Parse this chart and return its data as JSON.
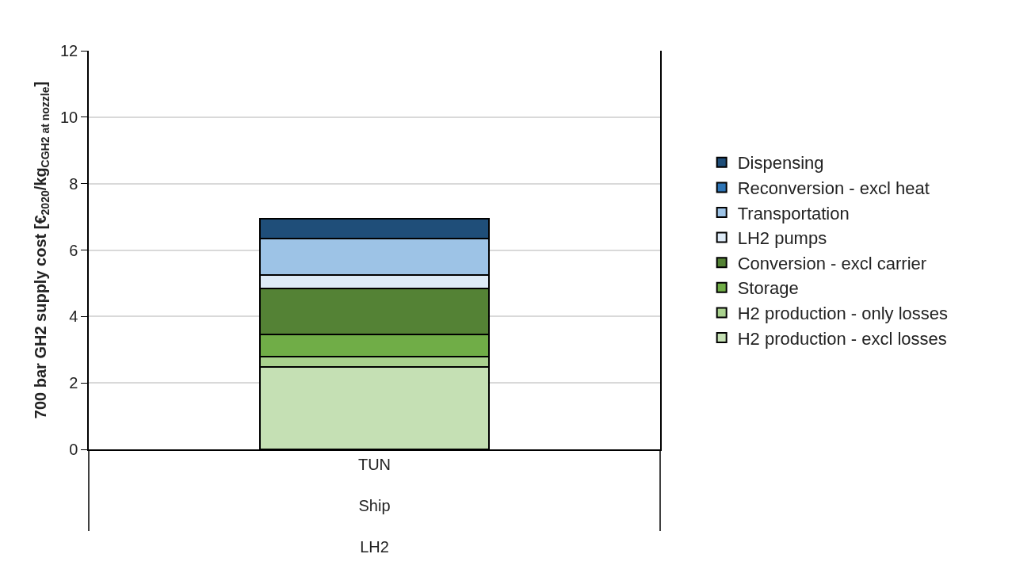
{
  "chart_data": {
    "type": "bar",
    "stacked": true,
    "ylabel": "700 bar GH2 supply cost [€$_{2020}$/kg$_{CGH2 at nozzle}$]",
    "categories": [
      "TUN\nShip\nLH2"
    ],
    "series": [
      {
        "name": "H2 production - excl losses",
        "color": "#c5e0b4",
        "values": [
          2.48
        ]
      },
      {
        "name": "H2 production - only losses",
        "color": "#a9d18e",
        "values": [
          0.31
        ]
      },
      {
        "name": "Storage",
        "color": "#70ad47",
        "values": [
          0.67
        ]
      },
      {
        "name": "Conversion - excl carrier",
        "color": "#548235",
        "values": [
          1.38
        ]
      },
      {
        "name": "LH2 pumps",
        "color": "#deebf7",
        "values": [
          0.41
        ]
      },
      {
        "name": "Transportation",
        "color": "#9dc3e6",
        "values": [
          1.1
        ]
      },
      {
        "name": "Reconversion - excl heat",
        "color": "#2e75b6",
        "values": [
          0
        ]
      },
      {
        "name": "Dispensing",
        "color": "#1f4e79",
        "values": [
          0.59
        ]
      }
    ],
    "ylim": [
      0,
      12
    ],
    "yticks": [
      0,
      2,
      4,
      6,
      8,
      10,
      12
    ],
    "grid": "y",
    "legend": "right"
  }
}
